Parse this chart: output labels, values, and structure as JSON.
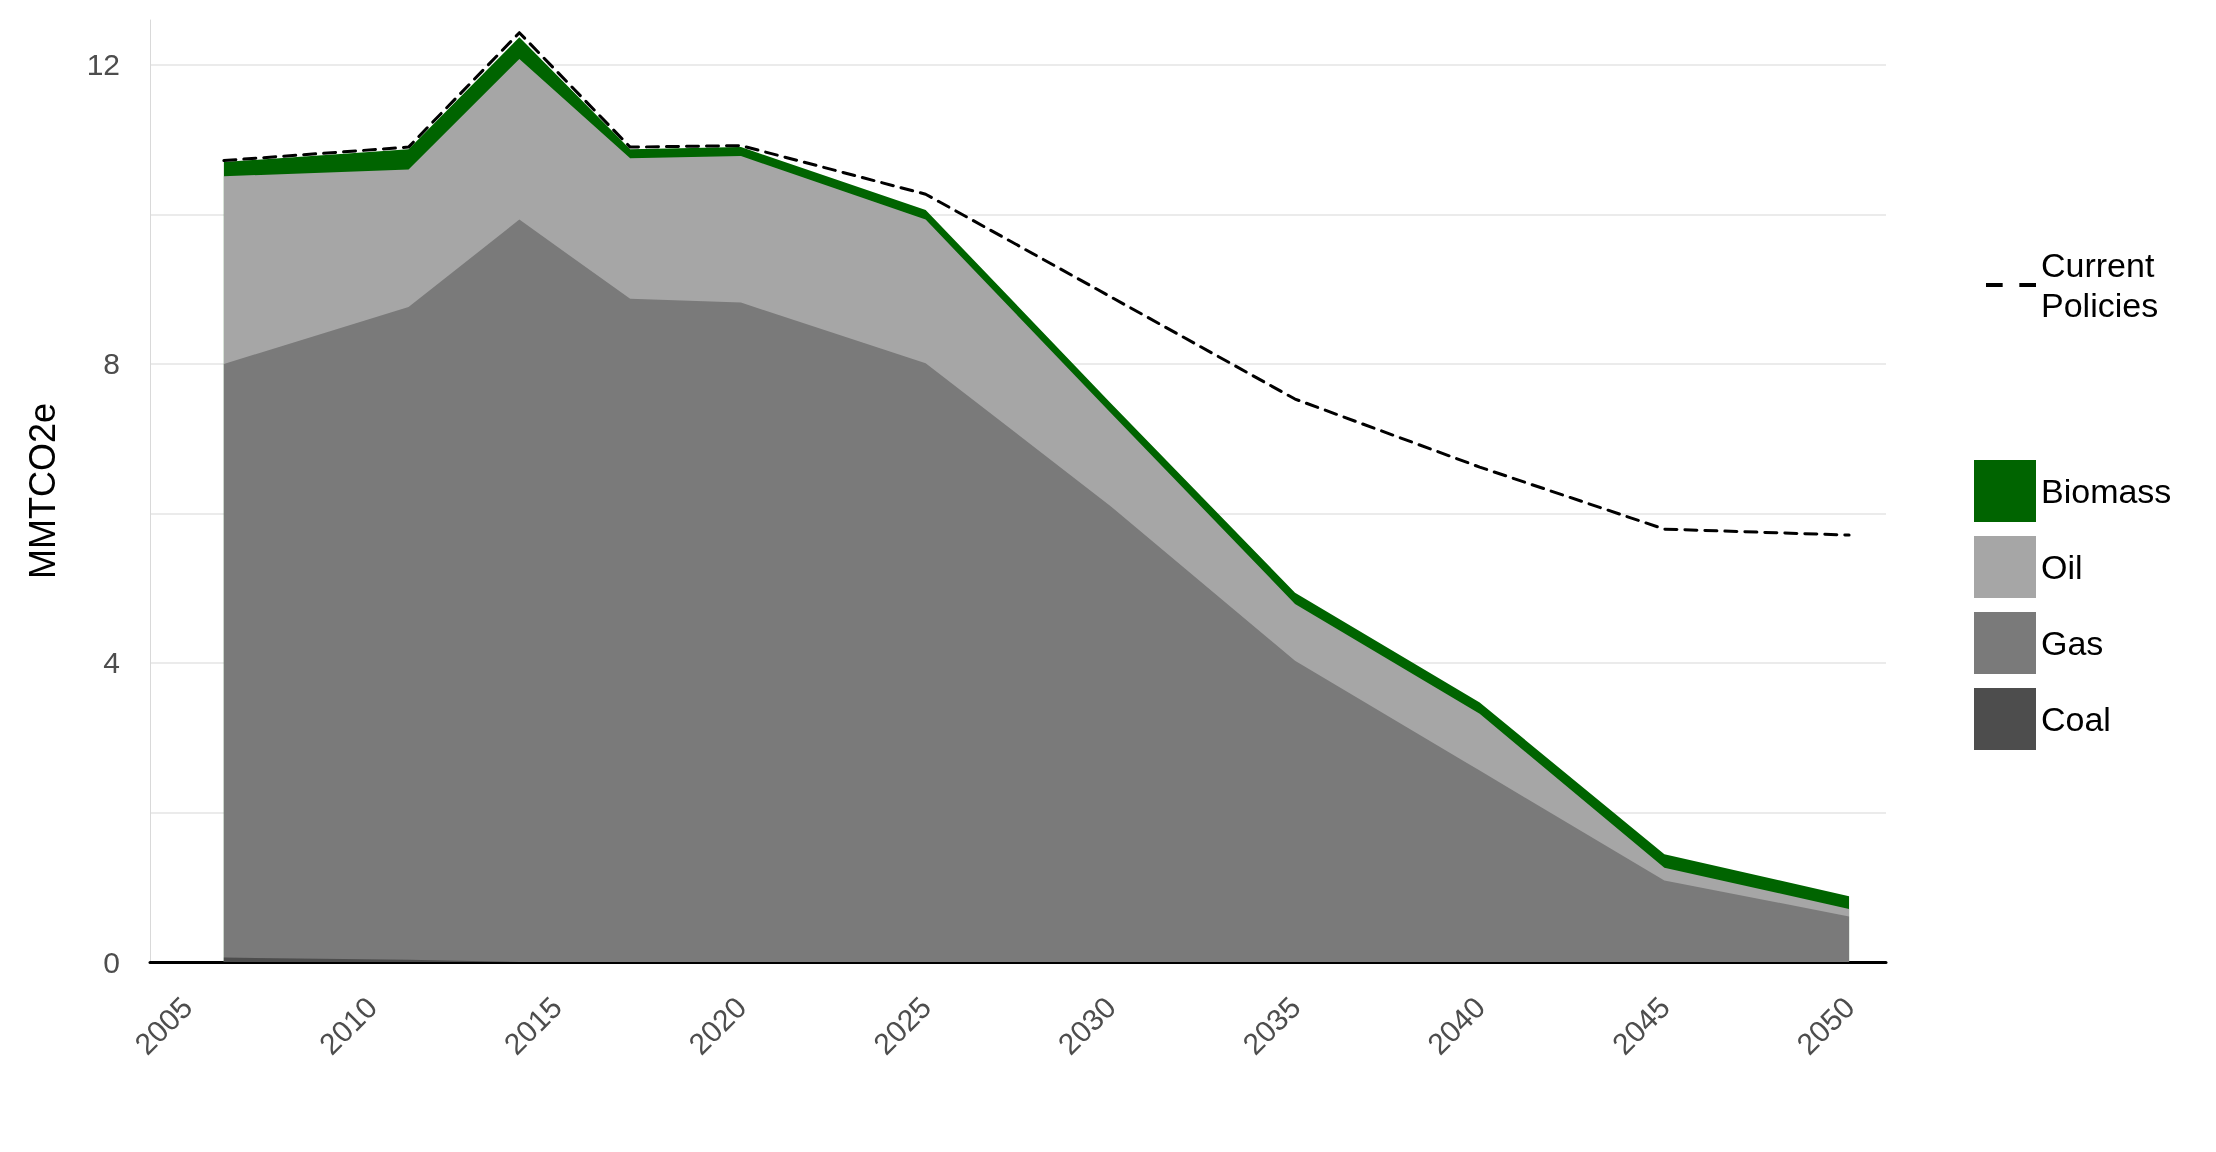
{
  "chart_data": {
    "type": "area",
    "ylabel": "MMTCO2e",
    "stacked": true,
    "x": [
      2006,
      2011,
      2014,
      2017,
      2020,
      2025,
      2030,
      2035,
      2040,
      2045,
      2050
    ],
    "xlim": [
      2004,
      2051
    ],
    "xticks": [
      2005,
      2010,
      2015,
      2020,
      2025,
      2030,
      2035,
      2040,
      2045,
      2050
    ],
    "ylim": [
      0,
      12.6
    ],
    "yticks": [
      0,
      {
        "value": 2,
        "label": null
      },
      4,
      {
        "value": 6,
        "label": null
      },
      8,
      {
        "value": 10,
        "label": null
      },
      12
    ],
    "grid": "y",
    "legend": "right",
    "marker": "none",
    "series": [
      {
        "name": "Coal",
        "color": "#4d4d4d",
        "values": [
          0.06,
          0.03,
          0,
          0,
          0,
          0,
          0,
          0,
          0,
          0,
          0
        ]
      },
      {
        "name": "Gas",
        "color": "#7a7a7a",
        "values": [
          7.94,
          8.73,
          9.93,
          8.87,
          8.82,
          8.01,
          6.1,
          4.03,
          2.56,
          1.09,
          0.61
        ]
      },
      {
        "name": "Oil",
        "color": "#a6a6a6",
        "values": [
          2.51,
          1.84,
          2.15,
          1.88,
          1.96,
          1.92,
          1.25,
          0.76,
          0.76,
          0.17,
          0.1
        ]
      },
      {
        "name": "Biomass",
        "color": "#006400",
        "values": [
          0.19,
          0.27,
          0.29,
          0.12,
          0.12,
          0.13,
          0.13,
          0.15,
          0.15,
          0.18,
          0.17
        ]
      },
      {
        "name": "Current Policies",
        "type": "line",
        "color": "#000000",
        "line_style": "dashed",
        "values": [
          10.72,
          10.9,
          12.43,
          10.9,
          10.92,
          10.27,
          8.9,
          7.53,
          6.62,
          5.79,
          5.71
        ]
      }
    ]
  }
}
